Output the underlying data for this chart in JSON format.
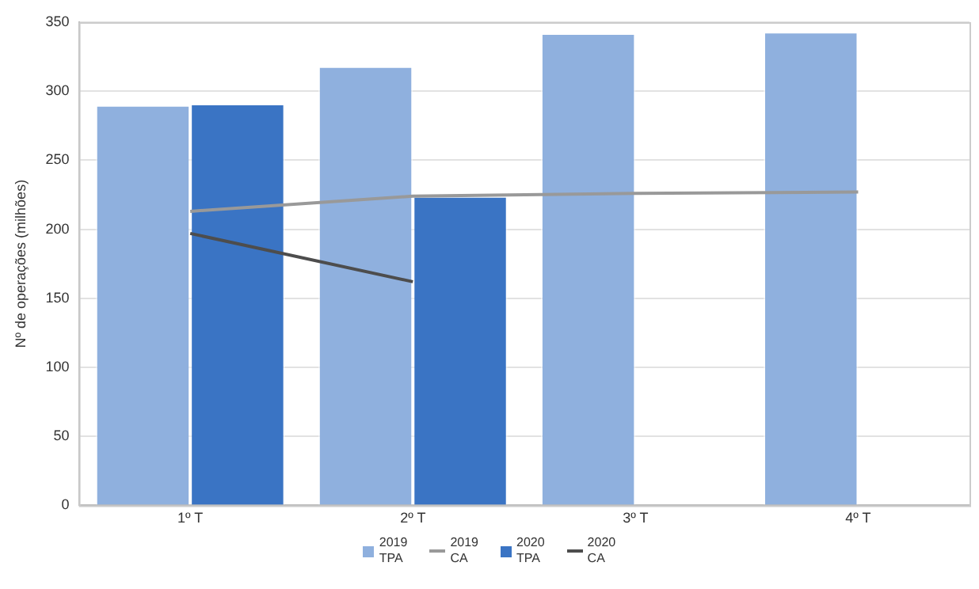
{
  "chart_data": {
    "type": "bar",
    "ylabel": "Nº de operações (milhões)",
    "categories": [
      "1º T",
      "2º T",
      "3º T",
      "4º T"
    ],
    "series": [
      {
        "name": "2019\nTPA",
        "color": "#8fb0de",
        "values": [
          290,
          318,
          342,
          343
        ]
      },
      {
        "name": "2019\nCA",
        "type": "line",
        "color": "#999999",
        "values": [
          213,
          224,
          226,
          227
        ]
      },
      {
        "name": "2020\nTPA",
        "color": "#3a74c4",
        "values": [
          291,
          224,
          null,
          null
        ]
      },
      {
        "name": "2020\nCA",
        "type": "line",
        "color": "#4d4d4d",
        "values": [
          197,
          162,
          null,
          null
        ]
      }
    ],
    "ylim": [
      0,
      350
    ],
    "yticks": [
      0,
      50,
      100,
      150,
      200,
      250,
      300,
      350
    ],
    "grid": "y",
    "legend": "bottom",
    "marker": "none",
    "line_style": "solid"
  }
}
